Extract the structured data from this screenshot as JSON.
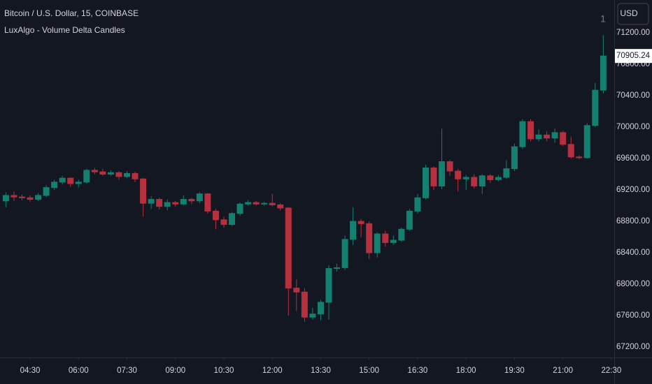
{
  "chart_data": {
    "type": "candlestick",
    "title": "Bitcoin / U.S. Dollar, 15, COINBASE",
    "subtitle": "LuxAlgo - Volume Delta Candles",
    "currency": "USD",
    "badge": "1",
    "up_color": "#14806f",
    "down_color": "#b5313f",
    "grid": false,
    "ylim": [
      67067,
      71618
    ],
    "yticks": [
      {
        "value": 67200,
        "label": "67200.00"
      },
      {
        "value": 67600,
        "label": "67600.00"
      },
      {
        "value": 68000,
        "label": "68000.00"
      },
      {
        "value": 68400,
        "label": "68400.00"
      },
      {
        "value": 68800,
        "label": "68800.00"
      },
      {
        "value": 69200,
        "label": "69200.00"
      },
      {
        "value": 69600,
        "label": "69600.00"
      },
      {
        "value": 70000,
        "label": "70000.00"
      },
      {
        "value": 70400,
        "label": "70400.00"
      },
      {
        "value": 70800,
        "label": "70800.00"
      },
      {
        "value": 71200,
        "label": "71200.00"
      }
    ],
    "categories": [
      null,
      null,
      null,
      "04:30",
      null,
      null,
      null,
      null,
      null,
      "06:00",
      null,
      null,
      null,
      null,
      null,
      "07:30",
      null,
      null,
      null,
      null,
      null,
      "09:00",
      null,
      null,
      null,
      null,
      null,
      "10:30",
      null,
      null,
      null,
      null,
      null,
      "12:00",
      null,
      null,
      null,
      null,
      null,
      "13:30",
      null,
      null,
      null,
      null,
      null,
      "15:00",
      null,
      null,
      null,
      null,
      null,
      "16:30",
      null,
      null,
      null,
      null,
      null,
      "18:00",
      null,
      null,
      null,
      null,
      null,
      "19:30",
      null,
      null,
      null,
      null,
      null,
      "21:00",
      null,
      null,
      null,
      null,
      null,
      "22:30"
    ],
    "open": [
      69060,
      69130,
      69110,
      69100,
      69080,
      69130,
      69230,
      69300,
      69350,
      69280,
      69300,
      69450,
      69430,
      69400,
      69420,
      69370,
      69410,
      69340,
      69030,
      69080,
      68990,
      69040,
      69020,
      69080,
      69060,
      69150,
      68930,
      68820,
      68760,
      68900,
      69020,
      69040,
      69020,
      69030,
      69010,
      68970,
      67950,
      67900,
      67580,
      67620,
      67770,
      68200,
      68210,
      68570,
      68800,
      68770,
      68400,
      68640,
      68530,
      68560,
      68700,
      68930,
      69100,
      69480,
      69250,
      69560,
      69440,
      69340,
      69360,
      69250,
      69380,
      69330,
      69360,
      69470,
      69750,
      70070,
      69850,
      69900,
      69860,
      69930,
      69780,
      69620,
      69610,
      70020,
      70470,
      null
    ],
    "high": [
      69170,
      69180,
      69140,
      69130,
      69160,
      69260,
      69330,
      69380,
      69360,
      69330,
      69470,
      69480,
      69470,
      69450,
      69440,
      69440,
      69430,
      69350,
      69120,
      69100,
      69080,
      69060,
      69130,
      69100,
      69170,
      69160,
      68960,
      68860,
      68920,
      69040,
      69070,
      69060,
      69050,
      69150,
      69030,
      68980,
      68060,
      67950,
      67700,
      67800,
      68240,
      68260,
      68620,
      68980,
      68830,
      68800,
      68660,
      68680,
      68620,
      68720,
      68960,
      69150,
      69520,
      69500,
      69980,
      69580,
      69470,
      69390,
      69400,
      69400,
      69400,
      69390,
      69580,
      69790,
      70100,
      70100,
      69970,
      69950,
      69980,
      69950,
      69880,
      69640,
      70050,
      70560,
      71170,
      null
    ],
    "low": [
      68980,
      69060,
      69070,
      69050,
      69060,
      69110,
      69200,
      69270,
      69240,
      69230,
      69280,
      69400,
      69380,
      69380,
      69330,
      69350,
      69300,
      68860,
      68960,
      68950,
      68940,
      68990,
      69000,
      69020,
      69030,
      68900,
      68700,
      68720,
      68740,
      68870,
      69000,
      69000,
      69000,
      68990,
      68940,
      67600,
      67660,
      67520,
      67550,
      67540,
      67550,
      68160,
      68180,
      68500,
      68600,
      68320,
      68340,
      68480,
      68500,
      68540,
      68680,
      68900,
      69080,
      69200,
      69210,
      69380,
      69180,
      69200,
      69220,
      69150,
      69290,
      69310,
      69340,
      69440,
      69720,
      69820,
      69820,
      69820,
      69800,
      69760,
      69600,
      69590,
      69600,
      70000,
      70430,
      null
    ],
    "close": [
      69130,
      69110,
      69100,
      69080,
      69130,
      69230,
      69300,
      69350,
      69280,
      69300,
      69450,
      69430,
      69400,
      69420,
      69370,
      69410,
      69340,
      69030,
      69080,
      68990,
      69040,
      69020,
      69080,
      69060,
      69150,
      68930,
      68820,
      68760,
      68900,
      69020,
      69040,
      69020,
      69030,
      69010,
      68970,
      67950,
      67900,
      67580,
      67620,
      67770,
      68200,
      68210,
      68570,
      68800,
      68770,
      68400,
      68640,
      68530,
      68560,
      68700,
      68930,
      69100,
      69480,
      69250,
      69560,
      69440,
      69340,
      69360,
      69250,
      69380,
      69330,
      69360,
      69470,
      69750,
      70070,
      69850,
      69900,
      69860,
      69930,
      69780,
      69620,
      69610,
      70020,
      70470,
      70905.24,
      null
    ]
  }
}
